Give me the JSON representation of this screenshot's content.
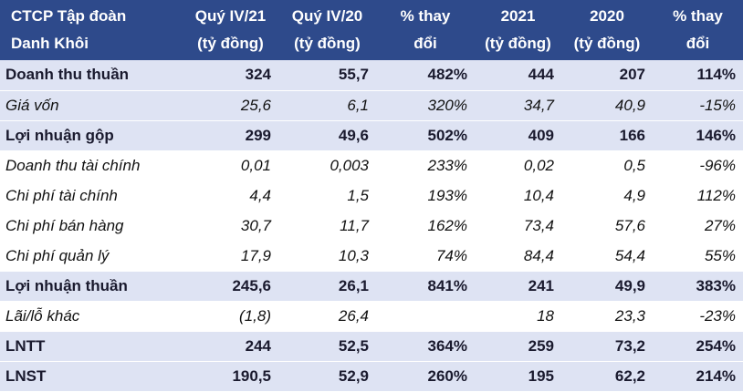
{
  "table": {
    "header": [
      [
        "CTCP Tập đoàn",
        "Danh Khôi"
      ],
      [
        "Quý IV/21",
        "(tỷ đồng)"
      ],
      [
        "Quý IV/20",
        "(tỷ đồng)"
      ],
      [
        "% thay",
        "đổi"
      ],
      [
        "2021",
        "(tỷ đồng)"
      ],
      [
        "2020",
        "(tỷ đồng)"
      ],
      [
        "% thay",
        "đổi"
      ]
    ],
    "rows": [
      {
        "bold": true,
        "shaded": true,
        "cells": [
          "Doanh thu thuần",
          "324",
          "55,7",
          "482%",
          "444",
          "207",
          "114%"
        ]
      },
      {
        "bold": false,
        "shaded": true,
        "cells": [
          "Giá vốn",
          "25,6",
          "6,1",
          "320%",
          "34,7",
          "40,9",
          "-15%"
        ]
      },
      {
        "bold": true,
        "shaded": true,
        "cells": [
          "Lợi nhuận gộp",
          "299",
          "49,6",
          "502%",
          "409",
          "166",
          "146%"
        ]
      },
      {
        "bold": false,
        "shaded": false,
        "cells": [
          "Doanh thu tài chính",
          "0,01",
          "0,003",
          "233%",
          "0,02",
          "0,5",
          "-96%"
        ]
      },
      {
        "bold": false,
        "shaded": false,
        "cells": [
          "Chi phí tài chính",
          "4,4",
          "1,5",
          "193%",
          "10,4",
          "4,9",
          "112%"
        ]
      },
      {
        "bold": false,
        "shaded": false,
        "cells": [
          "Chi phí bán hàng",
          "30,7",
          "11,7",
          "162%",
          "73,4",
          "57,6",
          "27%"
        ]
      },
      {
        "bold": false,
        "shaded": false,
        "cells": [
          "Chi phí quản lý",
          "17,9",
          "10,3",
          "74%",
          "84,4",
          "54,4",
          "55%"
        ]
      },
      {
        "bold": true,
        "shaded": true,
        "cells": [
          "Lợi nhuận thuần",
          "245,6",
          "26,1",
          "841%",
          "241",
          "49,9",
          "383%"
        ]
      },
      {
        "bold": false,
        "shaded": false,
        "cells": [
          "Lãi/lỗ khác",
          "(1,8)",
          "26,4",
          null,
          "18",
          "23,3",
          "-23%"
        ]
      },
      {
        "bold": true,
        "shaded": true,
        "cells": [
          "LNTT",
          "244",
          "52,5",
          "364%",
          "259",
          "73,2",
          "254%"
        ]
      },
      {
        "bold": true,
        "shaded": true,
        "cells": [
          "LNST",
          "190,5",
          "52,9",
          "260%",
          "195",
          "62,2",
          "214%"
        ]
      }
    ]
  }
}
